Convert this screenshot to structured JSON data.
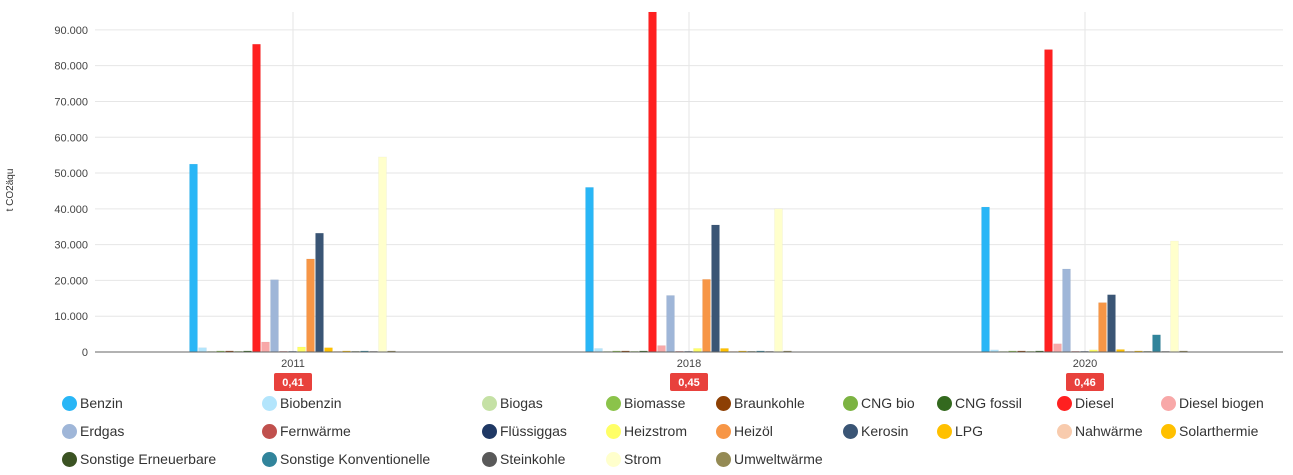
{
  "chart_data": {
    "type": "bar",
    "ylabel": "t CO2äqu",
    "xlabel": "",
    "ylim": [
      0,
      95000
    ],
    "yticks": [
      0,
      10000,
      20000,
      30000,
      40000,
      50000,
      60000,
      70000,
      80000,
      90000
    ],
    "ytick_labels": [
      "0",
      "10.000",
      "20.000",
      "30.000",
      "40.000",
      "50.000",
      "60.000",
      "70.000",
      "80.000",
      "90.000"
    ],
    "grid": true,
    "legend_position": "bottom",
    "categories": [
      "2011",
      "2018",
      "2020"
    ],
    "badges": [
      "0,41",
      "0,45",
      "0,46"
    ],
    "badge_color": "#e8413c",
    "series": [
      {
        "name": "Benzin",
        "color": "#29b6f6",
        "values": [
          52500,
          46000,
          40500
        ]
      },
      {
        "name": "Biobenzin",
        "color": "#b3e5fc",
        "values": [
          1200,
          1000,
          600
        ]
      },
      {
        "name": "Biogas",
        "color": "#c5e1a5",
        "values": [
          200,
          200,
          200
        ]
      },
      {
        "name": "Biomasse",
        "color": "#8bc34a",
        "values": [
          300,
          300,
          300
        ]
      },
      {
        "name": "Braunkohle",
        "color": "#8d4004",
        "values": [
          300,
          300,
          300
        ]
      },
      {
        "name": "CNG bio",
        "color": "#7cb342",
        "values": [
          200,
          200,
          200
        ]
      },
      {
        "name": "CNG fossil",
        "color": "#33691e",
        "values": [
          300,
          300,
          300
        ]
      },
      {
        "name": "Diesel",
        "color": "#ff2020",
        "values": [
          86000,
          95000,
          84500
        ]
      },
      {
        "name": "Diesel biogen",
        "color": "#f8a8a8",
        "values": [
          2800,
          1800,
          2300
        ]
      },
      {
        "name": "Erdgas",
        "color": "#9fb6d8",
        "values": [
          20200,
          15800,
          23200
        ]
      },
      {
        "name": "Fernwärme",
        "color": "#c0504d",
        "values": [
          200,
          200,
          200
        ]
      },
      {
        "name": "Flüssiggas",
        "color": "#1f3864",
        "values": [
          200,
          200,
          200
        ]
      },
      {
        "name": "Heizstrom",
        "color": "#ffff66",
        "values": [
          1400,
          1000,
          600
        ]
      },
      {
        "name": "Heizöl",
        "color": "#f79646",
        "values": [
          26000,
          20300,
          13800
        ]
      },
      {
        "name": "Kerosin",
        "color": "#3a5575",
        "values": [
          33200,
          35500,
          16000
        ]
      },
      {
        "name": "LPG",
        "color": "#ffc000",
        "values": [
          1200,
          1000,
          700
        ]
      },
      {
        "name": "Nahwärme",
        "color": "#f8cbad",
        "values": [
          200,
          200,
          200
        ]
      },
      {
        "name": "Solarthermie",
        "color": "#ffc000",
        "values": [
          300,
          300,
          300
        ]
      },
      {
        "name": "Sonstige Erneuerbare",
        "color": "#3b5323",
        "values": [
          200,
          200,
          200
        ]
      },
      {
        "name": "Sonstige Konventionelle",
        "color": "#31849b",
        "values": [
          300,
          300,
          4800
        ]
      },
      {
        "name": "Steinkohle",
        "color": "#595959",
        "values": [
          200,
          200,
          200
        ]
      },
      {
        "name": "Strom",
        "color": "#ffffcc",
        "values": [
          54500,
          40000,
          31000
        ]
      },
      {
        "name": "Umweltwärme",
        "color": "#948a54",
        "values": [
          300,
          300,
          300
        ]
      }
    ]
  }
}
